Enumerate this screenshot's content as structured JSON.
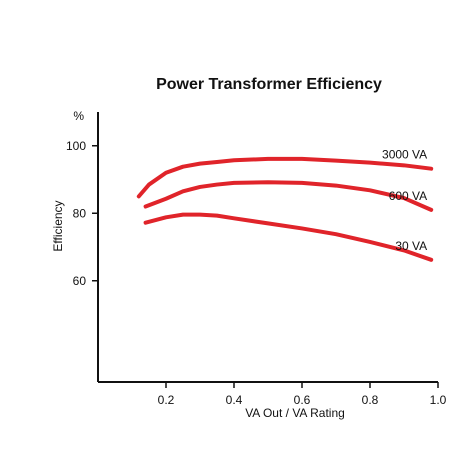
{
  "chart_data": {
    "type": "line",
    "title": "Power Transformer Efficiency",
    "xlabel": "VA Out / VA Rating",
    "ylabel": "Efficiency",
    "yunit": "%",
    "xlim": [
      0.0,
      1.0
    ],
    "ylim": [
      30,
      110
    ],
    "xticks": [
      0.2,
      0.4,
      0.6,
      0.8,
      1.0
    ],
    "xtick_labels": [
      "0.2",
      "0.4",
      "0.6",
      "0.8",
      "1.0"
    ],
    "yticks": [
      60,
      80,
      100
    ],
    "ytick_labels": [
      "60",
      "80",
      "100"
    ],
    "grid": false,
    "legend": "inline-right",
    "series": [
      {
        "name": "3000 VA",
        "color": "#e0242a",
        "points": [
          [
            0.12,
            85.0
          ],
          [
            0.15,
            88.5
          ],
          [
            0.2,
            92.0
          ],
          [
            0.25,
            93.8
          ],
          [
            0.3,
            94.7
          ],
          [
            0.35,
            95.2
          ],
          [
            0.4,
            95.7
          ],
          [
            0.5,
            96.1
          ],
          [
            0.6,
            96.1
          ],
          [
            0.7,
            95.6
          ],
          [
            0.8,
            95.0
          ],
          [
            0.9,
            94.2
          ],
          [
            0.98,
            93.2
          ]
        ]
      },
      {
        "name": "600 VA",
        "color": "#e0242a",
        "points": [
          [
            0.14,
            82.0
          ],
          [
            0.2,
            84.3
          ],
          [
            0.25,
            86.5
          ],
          [
            0.3,
            87.8
          ],
          [
            0.35,
            88.5
          ],
          [
            0.4,
            89.0
          ],
          [
            0.5,
            89.2
          ],
          [
            0.6,
            89.0
          ],
          [
            0.7,
            88.2
          ],
          [
            0.8,
            86.8
          ],
          [
            0.9,
            84.5
          ],
          [
            0.98,
            81.0
          ]
        ]
      },
      {
        "name": "30 VA",
        "color": "#e0242a",
        "points": [
          [
            0.14,
            77.2
          ],
          [
            0.2,
            78.8
          ],
          [
            0.25,
            79.6
          ],
          [
            0.3,
            79.6
          ],
          [
            0.35,
            79.3
          ],
          [
            0.4,
            78.5
          ],
          [
            0.5,
            77.0
          ],
          [
            0.6,
            75.5
          ],
          [
            0.7,
            73.8
          ],
          [
            0.8,
            71.5
          ],
          [
            0.9,
            69.0
          ],
          [
            0.98,
            66.2
          ]
        ]
      }
    ]
  }
}
